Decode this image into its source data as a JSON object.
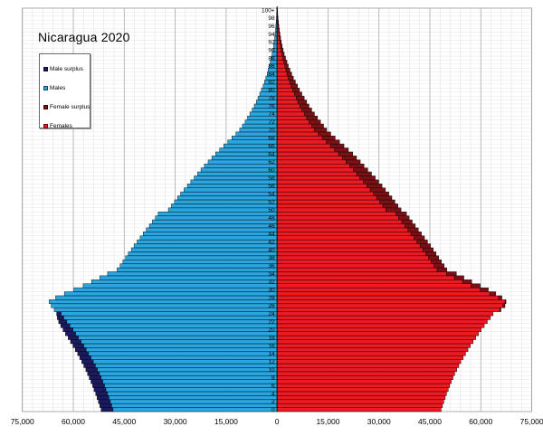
{
  "title": "Nicaragua 2020",
  "legend": {
    "items": [
      {
        "label": "Male surplus",
        "color": "#1B1B5E"
      },
      {
        "label": "Males",
        "color": "#2AA5DE"
      },
      {
        "label": "Female surplus",
        "color": "#7A1215"
      },
      {
        "label": "Females",
        "color": "#EC1B23"
      }
    ]
  },
  "chart_data": {
    "type": "bar",
    "subtype": "population-pyramid",
    "title": "Nicaragua 2020",
    "grid": true,
    "legend_position": "upper-left",
    "x_axis": {
      "range": [
        -75000,
        75000
      ],
      "major_step": 15000,
      "minor_step": 3000,
      "tick_values": [
        -75000,
        -60000,
        -45000,
        -30000,
        -15000,
        0,
        15000,
        30000,
        45000,
        60000,
        75000
      ],
      "tick_labels": [
        "75,000",
        "60,000",
        "45,000",
        "30,000",
        "15,000",
        "0",
        "15,000",
        "30,000",
        "45,000",
        "60,000",
        "75,000"
      ]
    },
    "y_axis": {
      "label": "single-year age, 0 at bottom to 100+ at top",
      "bar_per_year": 1,
      "tick_labels_top_to_bottom": [
        "100+",
        "98",
        "96",
        "94",
        "92",
        "90",
        "88",
        "86",
        "84",
        "82",
        "80",
        "78",
        "76",
        "74",
        "72",
        "70",
        "68",
        "66",
        "64",
        "62",
        "60",
        "58",
        "56",
        "54",
        "52",
        "50",
        "48",
        "46",
        "44",
        "42",
        "40",
        "38",
        "36",
        "34",
        "32",
        "30",
        "28",
        "26",
        "24",
        "22",
        "20",
        "18",
        "16",
        "14",
        "12",
        "10",
        "8",
        "6",
        "4",
        "2",
        "0"
      ]
    },
    "series": [
      {
        "name": "Males",
        "side": "left",
        "color": "#2AA5DE",
        "surplus_name": "Male surplus",
        "surplus_color": "#1B1B5E",
        "ages": "0 to 100+ by 1",
        "values": [
          51800,
          52200,
          52600,
          53000,
          53400,
          53900,
          54300,
          54800,
          55300,
          55800,
          56300,
          56900,
          57500,
          58100,
          58700,
          59400,
          60100,
          60800,
          61500,
          62300,
          63000,
          63700,
          64300,
          64700,
          64900,
          65600,
          66500,
          67100,
          65200,
          62600,
          59800,
          57100,
          54600,
          52200,
          49900,
          47100,
          46200,
          45400,
          44600,
          43800,
          42900,
          42100,
          41200,
          40300,
          39400,
          38500,
          37600,
          36700,
          35800,
          35000,
          32000,
          31100,
          30200,
          29300,
          28400,
          27400,
          26400,
          25400,
          24400,
          23400,
          22400,
          21400,
          20300,
          19200,
          18100,
          16900,
          15700,
          14500,
          13300,
          12100,
          11000,
          10200,
          9400,
          8700,
          8000,
          7300,
          6700,
          6100,
          5600,
          5100,
          4600,
          4100,
          3700,
          3300,
          2900,
          2600,
          2300,
          2000,
          1700,
          1450,
          1200,
          1000,
          850,
          700,
          570,
          450,
          340,
          250,
          180,
          120,
          80
        ]
      },
      {
        "name": "Females",
        "side": "right",
        "color": "#EC1B23",
        "surplus_name": "Female surplus",
        "surplus_color": "#7A1215",
        "ages": "0 to 100+ by 1",
        "values": [
          48300,
          48700,
          49100,
          49500,
          49900,
          50400,
          50800,
          51300,
          51800,
          52300,
          52900,
          53500,
          54100,
          54800,
          55500,
          56200,
          56900,
          57700,
          58500,
          59300,
          60100,
          61000,
          61900,
          62800,
          63600,
          65900,
          67100,
          67400,
          66200,
          64400,
          62200,
          59800,
          57300,
          55000,
          52800,
          50000,
          49200,
          48400,
          47600,
          46800,
          46000,
          45200,
          44300,
          43400,
          42500,
          41600,
          40700,
          39800,
          38900,
          38100,
          36500,
          35600,
          34700,
          33800,
          32900,
          31900,
          30900,
          29900,
          28900,
          27800,
          26700,
          25600,
          24500,
          23400,
          22300,
          21000,
          19700,
          18400,
          17100,
          15800,
          14600,
          13700,
          12800,
          11900,
          11000,
          10200,
          9400,
          8700,
          8000,
          7300,
          6600,
          6000,
          5400,
          4800,
          4300,
          3800,
          3300,
          2900,
          2500,
          2100,
          1800,
          1500,
          1250,
          1030,
          840,
          670,
          520,
          390,
          280,
          200,
          140
        ]
      }
    ],
    "style": {
      "grid_minor_color": "#E2E2E2",
      "grid_major_color": "#ABABAB",
      "row_line_color": "#E6E6E6",
      "plot_border_color": "#9A9A9A",
      "center_axis_color": "#111111",
      "bar_stroke_color": "rgba(0,0,0,0.8)",
      "text_color": "#000000"
    }
  }
}
